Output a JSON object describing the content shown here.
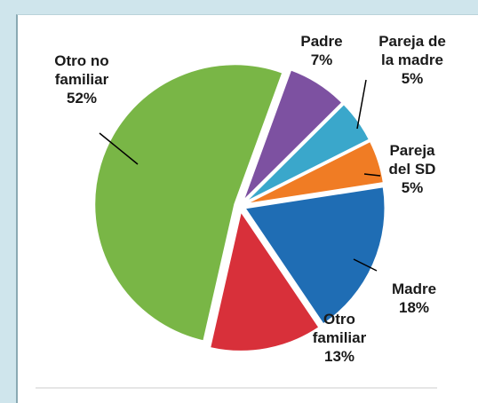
{
  "chart_data": {
    "type": "pie",
    "categories": [
      "Padre",
      "Pareja de la madre",
      "Pareja del SD",
      "Madre",
      "Otro familiar",
      "Otro no familiar"
    ],
    "values": [
      7,
      5,
      5,
      18,
      13,
      52
    ],
    "value_labels": [
      "7%",
      "5%",
      "5%",
      "18%",
      "13%",
      "52%"
    ],
    "colors": [
      "#7d51a1",
      "#3aa7cb",
      "#f07c24",
      "#1f6db4",
      "#d8303a",
      "#79b646"
    ]
  }
}
